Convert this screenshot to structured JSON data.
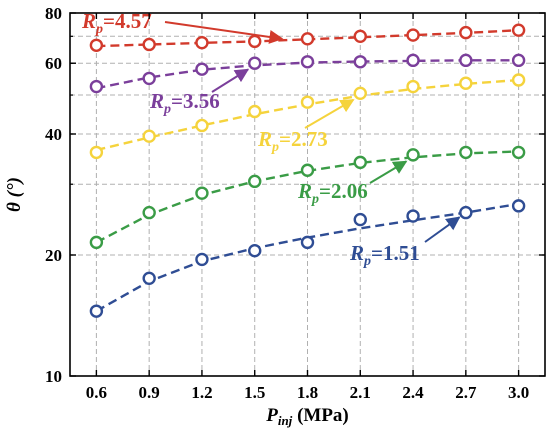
{
  "chart_data": {
    "type": "line",
    "xlabel": {
      "main": "P",
      "sub": "inj",
      "unit": " (MPa)"
    },
    "ylabel": "θ (°)",
    "x": [
      0.6,
      0.9,
      1.2,
      1.5,
      1.8,
      2.1,
      2.4,
      2.7,
      3.0
    ],
    "x_tick_labels": [
      "0.6",
      "0.9",
      "1.2",
      "1.5",
      "1.8",
      "2.1",
      "2.4",
      "2.7",
      "3.0"
    ],
    "xlim": [
      0.45,
      3.15
    ],
    "y_scale": "log",
    "ylim": [
      10,
      80
    ],
    "y_ticks": [
      10,
      20,
      40,
      60,
      80
    ],
    "y_tick_labels": [
      "10",
      "20",
      "40",
      "60",
      "80"
    ],
    "grid": true,
    "grid_style": "dashed",
    "series": [
      {
        "name": "Rp=4.57",
        "label": {
          "main": "R",
          "sub": "p",
          "rest": "=4.57"
        },
        "color": "#d23a2c",
        "values": [
          66.5,
          66.8,
          67.5,
          68.0,
          69.0,
          70.0,
          70.5,
          71.5,
          72.5
        ],
        "fit": [
          66.2,
          66.8,
          67.4,
          68.0,
          68.8,
          69.6,
          70.5,
          71.4,
          72.5
        ]
      },
      {
        "name": "Rp=3.56",
        "label": {
          "main": "R",
          "sub": "p",
          "rest": "=3.56"
        },
        "color": "#7b3f9b",
        "values": [
          52.5,
          55.0,
          58.0,
          60.0,
          60.5,
          60.5,
          61.0,
          61.0,
          61.0
        ],
        "fit": [
          52.0,
          55.3,
          57.8,
          59.3,
          60.2,
          60.6,
          60.8,
          61.0,
          61.0
        ]
      },
      {
        "name": "Rp=2.73",
        "label": {
          "main": "R",
          "sub": "p",
          "rest": "=2.73"
        },
        "color": "#f5d33c",
        "values": [
          36.0,
          39.5,
          42.0,
          45.5,
          48.0,
          50.5,
          52.5,
          53.5,
          54.5
        ],
        "fit": [
          36.5,
          39.2,
          42.0,
          44.8,
          47.4,
          49.8,
          51.8,
          53.3,
          54.5
        ]
      },
      {
        "name": "Rp=2.06",
        "label": {
          "main": "R",
          "sub": "p",
          "rest": "=2.06"
        },
        "color": "#3a9c46",
        "values": [
          21.5,
          25.5,
          28.5,
          30.5,
          32.5,
          34.0,
          35.5,
          36.0,
          36.0
        ],
        "fit": [
          21.5,
          25.2,
          28.2,
          30.5,
          32.4,
          33.9,
          35.0,
          35.8,
          36.2
        ]
      },
      {
        "name": "Rp=1.51",
        "label": {
          "main": "R",
          "sub": "p",
          "rest": "=1.51"
        },
        "color": "#2f4d94",
        "values": [
          14.5,
          17.5,
          19.5,
          20.5,
          21.5,
          24.5,
          25.0,
          25.5,
          26.5
        ],
        "fit": [
          14.5,
          17.2,
          19.3,
          20.8,
          22.1,
          23.3,
          24.4,
          25.5,
          26.8
        ]
      }
    ]
  }
}
